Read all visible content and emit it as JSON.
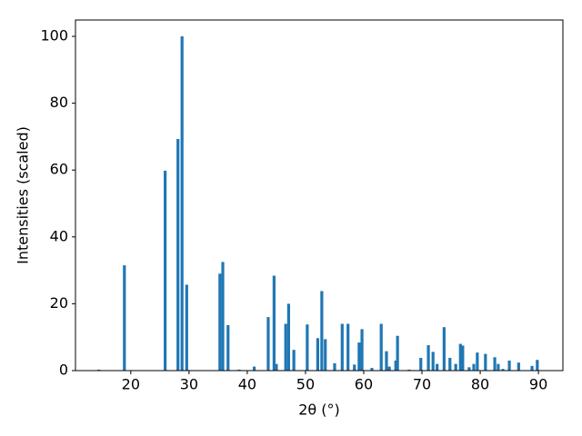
{
  "chart_data": {
    "type": "bar",
    "x_label": "2θ (°)",
    "y_label": "Intensities (scaled)",
    "color": "#1f77b4",
    "x": [
      14.5,
      18.9,
      25.9,
      28.1,
      28.8,
      29.6,
      35.3,
      35.8,
      36.7,
      38.6,
      41.2,
      43.6,
      44.6,
      45.0,
      46.6,
      47.1,
      48.0,
      50.3,
      52.1,
      52.8,
      53.4,
      55.0,
      56.3,
      57.3,
      58.4,
      59.2,
      59.7,
      61.4,
      63.0,
      63.9,
      64.4,
      65.5,
      65.8,
      67.8,
      69.8,
      71.1,
      71.9,
      72.6,
      73.8,
      74.8,
      75.8,
      76.6,
      77.0,
      78.1,
      78.9,
      79.5,
      80.9,
      82.5,
      83.1,
      83.9,
      85.0,
      86.6,
      88.9,
      89.8
    ],
    "values": [
      0.3,
      31.5,
      59.8,
      69.3,
      100,
      25.7,
      29,
      32.5,
      13.6,
      0.3,
      1.2,
      16,
      28.4,
      2,
      14,
      20,
      6.2,
      13.8,
      9.7,
      23.8,
      9.4,
      2.2,
      14,
      14,
      1.8,
      8.4,
      12.4,
      0.8,
      14,
      5.8,
      1.2,
      3,
      10.4,
      0.3,
      3.8,
      7.6,
      5.6,
      2,
      13,
      3.8,
      2,
      8,
      7.5,
      1,
      2,
      5.4,
      5,
      4,
      2,
      0.5,
      3,
      2.4,
      1.4,
      3.2
    ],
    "xlim": [
      10.5,
      94.2
    ],
    "ylim": [
      0,
      104.9
    ],
    "xticks": [
      20,
      30,
      40,
      50,
      60,
      70,
      80,
      90
    ],
    "yticks": [
      0,
      20,
      40,
      60,
      80,
      100
    ]
  }
}
